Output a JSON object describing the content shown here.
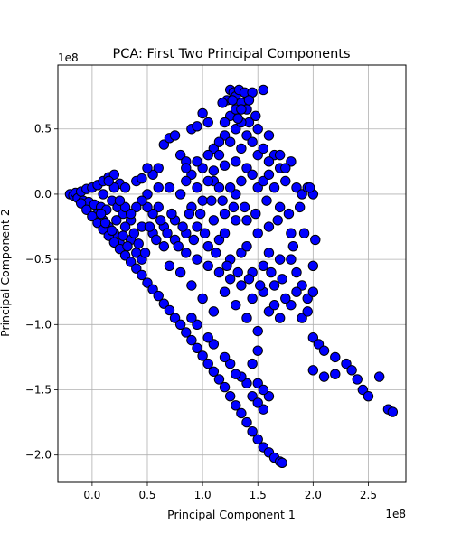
{
  "chart_data": {
    "type": "scatter",
    "title": "PCA: First Two Principal Components",
    "xlabel": "Principal Component 1",
    "ylabel": "Principal Component 2",
    "x_offset_label": "1e8",
    "y_offset_label": "1e8",
    "xlim": [
      -0.31,
      2.84
    ],
    "ylim": [
      -2.21,
      0.99
    ],
    "x_ticks": [
      0.0,
      0.5,
      1.0,
      1.5,
      2.0,
      2.5
    ],
    "x_tick_labels": [
      "0.0",
      "0.5",
      "1.0",
      "1.5",
      "2.0",
      "2.5"
    ],
    "y_ticks": [
      -2.0,
      -1.5,
      -1.0,
      -0.5,
      0.0,
      0.5
    ],
    "y_tick_labels": [
      "−2.0",
      "−1.5",
      "−1.0",
      "−0.5",
      "0.0",
      "0.5"
    ],
    "grid": true,
    "marker_color": "#0000ff",
    "marker_edge_color": "#000000",
    "points": [
      [
        -0.2,
        0.0
      ],
      [
        -0.17,
        -0.01
      ],
      [
        -0.15,
        0.01
      ],
      [
        -0.13,
        -0.03
      ],
      [
        -0.1,
        0.02
      ],
      [
        -0.08,
        -0.05
      ],
      [
        -0.05,
        0.04
      ],
      [
        -0.03,
        -0.06
      ],
      [
        0.0,
        0.05
      ],
      [
        0.02,
        -0.08
      ],
      [
        0.05,
        0.07
      ],
      [
        0.08,
        -0.1
      ],
      [
        0.1,
        0.1
      ],
      [
        0.13,
        -0.12
      ],
      [
        0.15,
        0.13
      ],
      [
        0.18,
        -0.05
      ],
      [
        0.2,
        0.15
      ],
      [
        0.23,
        -0.1
      ],
      [
        0.25,
        0.08
      ],
      [
        0.28,
        -0.15
      ],
      [
        0.3,
        0.05
      ],
      [
        0.35,
        -0.2
      ],
      [
        0.4,
        0.1
      ],
      [
        0.45,
        -0.25
      ],
      [
        0.5,
        0.0
      ],
      [
        0.55,
        -0.3
      ],
      [
        0.6,
        -0.1
      ],
      [
        0.3,
        -0.25
      ],
      [
        0.35,
        -0.35
      ],
      [
        0.4,
        -0.45
      ],
      [
        0.45,
        -0.5
      ],
      [
        0.2,
        -0.3
      ],
      [
        0.25,
        -0.38
      ],
      [
        0.15,
        -0.25
      ],
      [
        0.1,
        -0.2
      ],
      [
        0.05,
        -0.15
      ],
      [
        -0.1,
        -0.07
      ],
      [
        -0.05,
        -0.12
      ],
      [
        0.0,
        -0.17
      ],
      [
        0.05,
        -0.22
      ],
      [
        0.1,
        -0.27
      ],
      [
        0.15,
        -0.32
      ],
      [
        0.2,
        -0.37
      ],
      [
        0.25,
        -0.42
      ],
      [
        0.3,
        -0.47
      ],
      [
        0.35,
        -0.52
      ],
      [
        0.4,
        -0.57
      ],
      [
        0.45,
        -0.62
      ],
      [
        0.5,
        -0.68
      ],
      [
        0.55,
        -0.73
      ],
      [
        0.6,
        -0.78
      ],
      [
        0.65,
        -0.84
      ],
      [
        0.7,
        -0.89
      ],
      [
        0.75,
        -0.95
      ],
      [
        0.8,
        -1.0
      ],
      [
        0.85,
        -1.06
      ],
      [
        0.9,
        -1.12
      ],
      [
        0.95,
        -1.18
      ],
      [
        1.0,
        -1.24
      ],
      [
        1.05,
        -1.3
      ],
      [
        1.1,
        -1.36
      ],
      [
        1.15,
        -1.42
      ],
      [
        1.2,
        -1.48
      ],
      [
        1.25,
        -1.55
      ],
      [
        1.3,
        -1.62
      ],
      [
        1.35,
        -1.68
      ],
      [
        1.4,
        -1.75
      ],
      [
        1.45,
        -1.82
      ],
      [
        1.5,
        -1.88
      ],
      [
        1.55,
        -1.94
      ],
      [
        1.6,
        -1.98
      ],
      [
        1.65,
        -2.02
      ],
      [
        1.7,
        -2.05
      ],
      [
        1.72,
        -2.06
      ],
      [
        0.6,
        0.2
      ],
      [
        0.65,
        0.38
      ],
      [
        0.7,
        0.43
      ],
      [
        0.75,
        0.45
      ],
      [
        0.8,
        0.3
      ],
      [
        0.85,
        0.25
      ],
      [
        0.9,
        0.5
      ],
      [
        0.95,
        0.52
      ],
      [
        1.0,
        0.62
      ],
      [
        1.05,
        0.55
      ],
      [
        1.1,
        0.35
      ],
      [
        1.15,
        0.3
      ],
      [
        1.2,
        0.45
      ],
      [
        1.22,
        0.72
      ],
      [
        1.25,
        0.8
      ],
      [
        1.28,
        0.78
      ],
      [
        1.3,
        0.75
      ],
      [
        1.33,
        0.8
      ],
      [
        1.35,
        0.7
      ],
      [
        1.38,
        0.78
      ],
      [
        1.4,
        0.65
      ],
      [
        1.42,
        0.55
      ],
      [
        1.45,
        0.78
      ],
      [
        1.48,
        0.6
      ],
      [
        1.5,
        0.5
      ],
      [
        1.55,
        0.8
      ],
      [
        1.6,
        0.45
      ],
      [
        1.65,
        0.3
      ],
      [
        1.7,
        0.2
      ],
      [
        1.75,
        0.1
      ],
      [
        1.8,
        0.25
      ],
      [
        1.85,
        0.05
      ],
      [
        1.9,
        0.0
      ],
      [
        1.95,
        0.05
      ],
      [
        2.0,
        0.0
      ],
      [
        0.7,
        0.05
      ],
      [
        0.8,
        0.0
      ],
      [
        0.9,
        -0.1
      ],
      [
        1.0,
        -0.05
      ],
      [
        1.1,
        0.1
      ],
      [
        1.2,
        -0.15
      ],
      [
        1.3,
        0.0
      ],
      [
        1.4,
        -0.2
      ],
      [
        1.5,
        0.05
      ],
      [
        1.6,
        -0.25
      ],
      [
        1.7,
        -0.1
      ],
      [
        1.8,
        -0.3
      ],
      [
        0.75,
        -0.2
      ],
      [
        0.85,
        -0.3
      ],
      [
        0.95,
        -0.25
      ],
      [
        1.05,
        -0.4
      ],
      [
        1.15,
        -0.35
      ],
      [
        1.25,
        -0.5
      ],
      [
        1.35,
        -0.45
      ],
      [
        1.45,
        -0.6
      ],
      [
        1.55,
        -0.55
      ],
      [
        1.65,
        -0.7
      ],
      [
        0.65,
        -0.4
      ],
      [
        0.7,
        -0.55
      ],
      [
        0.8,
        -0.6
      ],
      [
        0.9,
        -0.7
      ],
      [
        1.0,
        -0.8
      ],
      [
        1.1,
        -0.9
      ],
      [
        1.2,
        -0.75
      ],
      [
        1.3,
        -0.85
      ],
      [
        1.4,
        -0.95
      ],
      [
        1.5,
        -1.05
      ],
      [
        1.6,
        -0.9
      ],
      [
        1.7,
        -0.95
      ],
      [
        1.8,
        -0.85
      ],
      [
        1.9,
        -0.95
      ],
      [
        2.0,
        -1.1
      ],
      [
        2.05,
        -1.15
      ],
      [
        2.1,
        -1.2
      ],
      [
        2.2,
        -1.25
      ],
      [
        2.3,
        -1.3
      ],
      [
        2.35,
        -1.35
      ],
      [
        2.4,
        -1.42
      ],
      [
        2.45,
        -1.5
      ],
      [
        2.5,
        -1.55
      ],
      [
        2.0,
        -1.35
      ],
      [
        2.1,
        -1.4
      ],
      [
        2.2,
        -1.38
      ],
      [
        2.6,
        -1.4
      ],
      [
        2.68,
        -1.65
      ],
      [
        2.72,
        -1.67
      ],
      [
        1.5,
        -1.2
      ],
      [
        1.45,
        -1.3
      ],
      [
        1.5,
        -1.45
      ],
      [
        1.6,
        -1.55
      ],
      [
        1.55,
        -1.65
      ],
      [
        1.4,
        -1.45
      ],
      [
        1.35,
        -1.4
      ],
      [
        1.3,
        -1.38
      ],
      [
        1.25,
        -1.3
      ],
      [
        1.2,
        -1.25
      ],
      [
        1.1,
        -1.15
      ],
      [
        1.05,
        -1.1
      ],
      [
        0.95,
        -1.0
      ],
      [
        0.9,
        -0.95
      ],
      [
        1.45,
        -1.55
      ],
      [
        1.5,
        -1.6
      ],
      [
        1.55,
        -1.5
      ],
      [
        0.9,
        0.15
      ],
      [
        1.0,
        0.2
      ],
      [
        1.1,
        0.18
      ],
      [
        1.2,
        0.22
      ],
      [
        1.3,
        0.25
      ],
      [
        1.4,
        0.2
      ],
      [
        1.5,
        0.3
      ],
      [
        1.6,
        0.25
      ],
      [
        1.7,
        0.3
      ],
      [
        1.75,
        0.2
      ],
      [
        1.1,
        -0.2
      ],
      [
        1.2,
        -0.3
      ],
      [
        1.3,
        -0.2
      ],
      [
        1.4,
        -0.4
      ],
      [
        1.5,
        -0.3
      ],
      [
        1.6,
        -0.45
      ],
      [
        1.7,
        -0.5
      ],
      [
        1.8,
        -0.5
      ],
      [
        1.85,
        -0.6
      ],
      [
        1.9,
        -0.7
      ],
      [
        1.95,
        -0.8
      ],
      [
        2.0,
        -0.55
      ],
      [
        2.0,
        -0.75
      ],
      [
        1.95,
        -0.9
      ],
      [
        1.85,
        -0.75
      ],
      [
        1.75,
        -0.8
      ],
      [
        1.65,
        -0.85
      ],
      [
        1.55,
        -0.75
      ],
      [
        1.45,
        -0.8
      ],
      [
        1.35,
        -0.7
      ],
      [
        1.25,
        -0.65
      ],
      [
        1.15,
        -0.6
      ],
      [
        1.05,
        -0.55
      ],
      [
        0.95,
        -0.5
      ],
      [
        0.85,
        -0.45
      ],
      [
        0.75,
        -0.35
      ],
      [
        0.65,
        -0.25
      ],
      [
        0.55,
        -0.15
      ],
      [
        0.5,
        -0.1
      ],
      [
        0.45,
        -0.05
      ],
      [
        0.4,
        -0.1
      ],
      [
        0.35,
        -0.15
      ],
      [
        0.3,
        -0.1
      ],
      [
        0.25,
        -0.05
      ],
      [
        0.2,
        0.05
      ],
      [
        0.15,
        0.1
      ],
      [
        0.1,
        0.0
      ],
      [
        0.08,
        -0.15
      ],
      [
        0.12,
        -0.22
      ],
      [
        0.18,
        -0.28
      ],
      [
        0.22,
        -0.2
      ],
      [
        0.28,
        -0.32
      ],
      [
        0.32,
        -0.4
      ],
      [
        0.38,
        -0.3
      ],
      [
        0.42,
        -0.38
      ],
      [
        0.48,
        -0.45
      ],
      [
        0.52,
        -0.25
      ],
      [
        0.58,
        -0.35
      ],
      [
        0.62,
        -0.2
      ],
      [
        0.68,
        -0.3
      ],
      [
        0.72,
        -0.15
      ],
      [
        0.78,
        -0.4
      ],
      [
        0.82,
        -0.25
      ],
      [
        0.88,
        -0.15
      ],
      [
        0.92,
        -0.35
      ],
      [
        0.98,
        -0.15
      ],
      [
        1.02,
        -0.3
      ],
      [
        1.08,
        -0.05
      ],
      [
        1.12,
        -0.45
      ],
      [
        1.18,
        -0.05
      ],
      [
        1.22,
        -0.55
      ],
      [
        1.28,
        -0.1
      ],
      [
        1.32,
        -0.6
      ],
      [
        1.38,
        -0.1
      ],
      [
        1.42,
        -0.65
      ],
      [
        1.48,
        -0.15
      ],
      [
        1.52,
        -0.7
      ],
      [
        1.58,
        -0.05
      ],
      [
        1.62,
        -0.6
      ],
      [
        1.68,
        -0.2
      ],
      [
        1.72,
        -0.65
      ],
      [
        1.78,
        -0.15
      ],
      [
        1.82,
        -0.4
      ],
      [
        1.88,
        -0.1
      ],
      [
        1.92,
        -0.3
      ],
      [
        1.97,
        0.05
      ],
      [
        2.02,
        -0.35
      ],
      [
        1.25,
        0.05
      ],
      [
        1.35,
        0.1
      ],
      [
        1.45,
        0.15
      ],
      [
        1.55,
        0.1
      ],
      [
        1.65,
        0.05
      ],
      [
        1.15,
        0.05
      ],
      [
        1.05,
        0.1
      ],
      [
        0.95,
        0.05
      ],
      [
        0.85,
        0.1
      ],
      [
        0.55,
        0.15
      ],
      [
        0.6,
        0.05
      ],
      [
        0.5,
        0.2
      ],
      [
        0.45,
        0.12
      ],
      [
        1.25,
        0.6
      ],
      [
        1.3,
        0.5
      ],
      [
        1.35,
        0.55
      ],
      [
        1.4,
        0.45
      ],
      [
        1.3,
        0.65
      ],
      [
        1.2,
        0.55
      ],
      [
        1.15,
        0.4
      ],
      [
        1.25,
        0.4
      ],
      [
        1.35,
        0.35
      ],
      [
        1.45,
        0.4
      ],
      [
        1.55,
        0.35
      ],
      [
        1.6,
        0.15
      ],
      [
        1.05,
        0.3
      ],
      [
        0.95,
        0.25
      ],
      [
        0.85,
        0.2
      ],
      [
        1.35,
        0.65
      ],
      [
        1.42,
        0.72
      ],
      [
        1.27,
        0.72
      ],
      [
        1.18,
        0.7
      ],
      [
        1.32,
        0.58
      ]
    ]
  }
}
